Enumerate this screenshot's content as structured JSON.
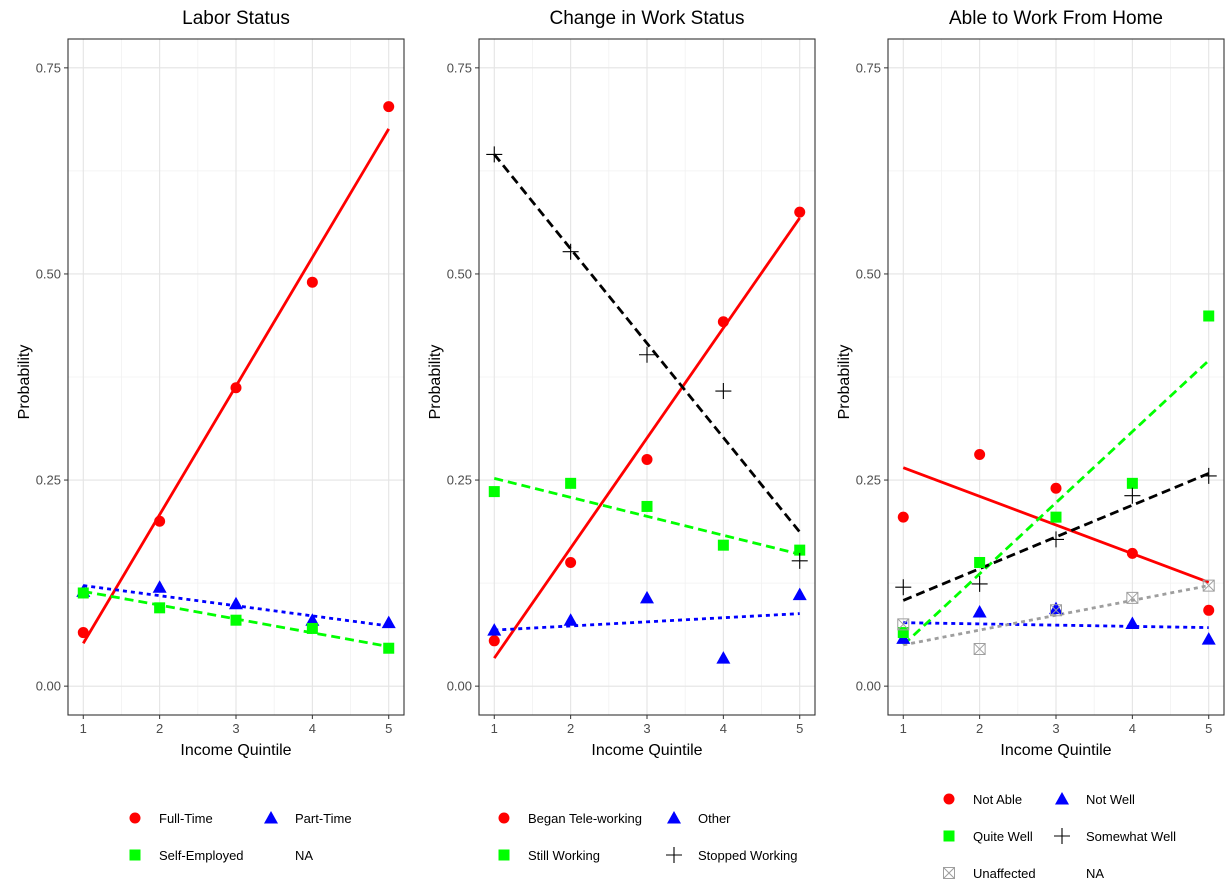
{
  "chart_data": [
    {
      "type": "scatter",
      "title": "Labor Status",
      "xlabel": "Income Quintile",
      "ylabel": "Probability",
      "x": [
        1,
        2,
        3,
        4,
        5
      ],
      "xticks": [
        "1",
        "2",
        "3",
        "4",
        "5"
      ],
      "yticks": [
        "0.00",
        "0.25",
        "0.50",
        "0.75"
      ],
      "ylim": [
        -0.035,
        0.785
      ],
      "grid": true,
      "series": [
        {
          "name": "Full-Time",
          "color": "#ff0000",
          "shape": "circle",
          "line": "solid",
          "values": [
            0.065,
            0.2,
            0.362,
            0.49,
            0.703
          ],
          "fit": [
            0.052,
            0.676
          ]
        },
        {
          "name": "Part-Time",
          "color": "#0000ff",
          "shape": "triangle",
          "line": "dotted",
          "values": [
            0.115,
            0.12,
            0.1,
            0.08,
            0.077
          ],
          "fit": [
            0.122,
            0.073
          ]
        },
        {
          "name": "Self-Employed",
          "color": "#00ff00",
          "shape": "square",
          "line": "dashed",
          "values": [
            0.113,
            0.095,
            0.08,
            0.07,
            0.046
          ],
          "fit": [
            0.115,
            0.048
          ]
        }
      ],
      "legend": {
        "items": [
          "Full-Time",
          "Part-Time",
          "Self-Employed",
          "NA"
        ]
      }
    },
    {
      "type": "scatter",
      "title": "Change in Work Status",
      "xlabel": "Income Quintile",
      "ylabel": "Probability",
      "x": [
        1,
        2,
        3,
        4,
        5
      ],
      "xticks": [
        "1",
        "2",
        "3",
        "4",
        "5"
      ],
      "yticks": [
        "0.00",
        "0.25",
        "0.50",
        "0.75"
      ],
      "ylim": [
        -0.035,
        0.785
      ],
      "grid": true,
      "series": [
        {
          "name": "Began Tele-working",
          "color": "#ff0000",
          "shape": "circle",
          "line": "solid",
          "values": [
            0.055,
            0.15,
            0.275,
            0.442,
            0.575
          ],
          "fit": [
            0.034,
            0.568
          ]
        },
        {
          "name": "Other",
          "color": "#0000ff",
          "shape": "triangle",
          "line": "dotted",
          "values": [
            0.068,
            0.08,
            0.107,
            0.034,
            0.111
          ],
          "fit": [
            0.068,
            0.088
          ]
        },
        {
          "name": "Still Working",
          "color": "#00ff00",
          "shape": "square",
          "line": "dashed",
          "values": [
            0.236,
            0.246,
            0.218,
            0.171,
            0.165
          ],
          "fit": [
            0.252,
            0.16
          ]
        },
        {
          "name": "Stopped Working",
          "color": "#000000",
          "shape": "plus",
          "line": "dashed",
          "values": [
            0.645,
            0.527,
            0.402,
            0.358,
            0.152
          ],
          "fit": [
            0.645,
            0.187
          ]
        }
      ],
      "legend": {
        "items": [
          "Began Tele-working",
          "Other",
          "Still Working",
          "Stopped Working"
        ]
      }
    },
    {
      "type": "scatter",
      "title": "Able to Work From Home",
      "xlabel": "Income Quintile",
      "ylabel": "Probability",
      "x": [
        1,
        2,
        3,
        4,
        5
      ],
      "xticks": [
        "1",
        "2",
        "3",
        "4",
        "5"
      ],
      "yticks": [
        "0.00",
        "0.25",
        "0.50",
        "0.75"
      ],
      "ylim": [
        -0.035,
        0.785
      ],
      "grid": true,
      "series": [
        {
          "name": "Not Able",
          "color": "#ff0000",
          "shape": "circle",
          "line": "solid",
          "values": [
            0.205,
            0.281,
            0.24,
            0.161,
            0.092
          ],
          "fit": [
            0.265,
            0.126
          ]
        },
        {
          "name": "Not Well",
          "color": "#0000ff",
          "shape": "triangle",
          "line": "dotted",
          "values": [
            0.058,
            0.09,
            0.094,
            0.076,
            0.057
          ],
          "fit": [
            0.077,
            0.071
          ]
        },
        {
          "name": "Quite Well",
          "color": "#00ff00",
          "shape": "square",
          "line": "dashed",
          "values": [
            0.065,
            0.15,
            0.205,
            0.246,
            0.449
          ],
          "fit": [
            0.05,
            0.395
          ]
        },
        {
          "name": "Somewhat Well",
          "color": "#000000",
          "shape": "plus",
          "line": "dashed",
          "values": [
            0.12,
            0.124,
            0.178,
            0.231,
            0.255
          ],
          "fit": [
            0.104,
            0.258
          ]
        },
        {
          "name": "Unaffected",
          "color": "#9e9e9e",
          "shape": "boxx",
          "line": "dotted",
          "values": [
            0.075,
            0.045,
            0.092,
            0.107,
            0.122
          ],
          "fit": [
            0.05,
            0.122
          ]
        }
      ],
      "legend": {
        "items": [
          "Not Able",
          "Not Well",
          "Quite Well",
          "Somewhat Well",
          "Unaffected",
          "NA"
        ]
      }
    }
  ]
}
